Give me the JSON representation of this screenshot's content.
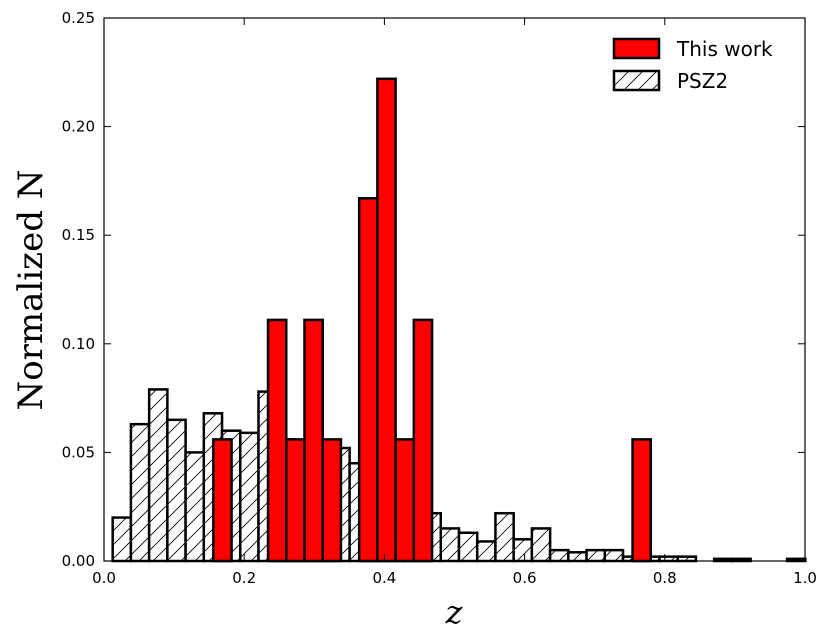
{
  "chart_data": {
    "type": "bar",
    "xlabel": "z",
    "ylabel": "Normalized N",
    "xlim": [
      0.0,
      1.0
    ],
    "ylim": [
      0.0,
      0.25
    ],
    "x_ticks": [
      "0.0",
      "0.2",
      "0.4",
      "0.6",
      "0.8",
      "1.0"
    ],
    "y_ticks": [
      "0.00",
      "0.05",
      "0.10",
      "0.15",
      "0.20",
      "0.25"
    ],
    "bin_width": 0.026,
    "legend_position": "top-right",
    "series": [
      {
        "name": "This work",
        "style": "filled",
        "color": "#ff0000",
        "bin_starts": [
          0.156,
          0.234,
          0.26,
          0.286,
          0.312,
          0.364,
          0.39,
          0.416,
          0.442,
          0.754
        ],
        "values": [
          0.056,
          0.111,
          0.056,
          0.111,
          0.056,
          0.167,
          0.222,
          0.056,
          0.111,
          0.056
        ]
      },
      {
        "name": "PSZ2",
        "style": "hatched",
        "color": "#ffffff",
        "bin_starts": [
          0.0124,
          0.0384,
          0.0644,
          0.0904,
          0.1164,
          0.1424,
          0.1684,
          0.1944,
          0.2204,
          0.2464,
          0.2724,
          0.2984,
          0.3244,
          0.3504,
          0.3764,
          0.4024,
          0.4284,
          0.4544,
          0.4804,
          0.5064,
          0.5324,
          0.5584,
          0.5844,
          0.6104,
          0.6364,
          0.6624,
          0.6884,
          0.7144,
          0.7404,
          0.7664,
          0.7924,
          0.8184,
          0.8444,
          0.8704,
          0.8964,
          0.9224,
          0.9484,
          0.9744
        ],
        "values": [
          0.02,
          0.063,
          0.079,
          0.065,
          0.05,
          0.068,
          0.06,
          0.059,
          0.078,
          0.056,
          0.046,
          0.052,
          0.052,
          0.045,
          0.032,
          0.025,
          0.023,
          0.022,
          0.015,
          0.013,
          0.009,
          0.022,
          0.01,
          0.015,
          0.005,
          0.004,
          0.005,
          0.005,
          0.002,
          0.002,
          0.002,
          0.002,
          0.0,
          0.001,
          0.001,
          0.0,
          0.0,
          0.001
        ]
      }
    ]
  }
}
